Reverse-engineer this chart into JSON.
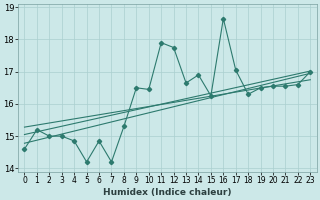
{
  "xlabel": "Humidex (Indice chaleur)",
  "x_data": [
    0,
    1,
    2,
    3,
    4,
    5,
    6,
    7,
    8,
    9,
    10,
    11,
    12,
    13,
    14,
    15,
    16,
    17,
    18,
    19,
    20,
    21,
    22,
    23
  ],
  "y_data": [
    14.6,
    15.2,
    15.0,
    15.0,
    14.85,
    14.2,
    14.85,
    14.2,
    15.3,
    16.5,
    16.45,
    17.9,
    17.75,
    16.65,
    16.9,
    16.25,
    18.65,
    17.05,
    16.3,
    16.5,
    16.55,
    16.55,
    16.6,
    17.0
  ],
  "line_color": "#2d7a6e",
  "bg_color": "#cce8e8",
  "grid_color": "#aacfcf",
  "xlim": [
    -0.5,
    23.5
  ],
  "ylim": [
    13.9,
    19.1
  ],
  "yticks": [
    14,
    15,
    16,
    17,
    18,
    19
  ],
  "xticks": [
    0,
    1,
    2,
    3,
    4,
    5,
    6,
    7,
    8,
    9,
    10,
    11,
    12,
    13,
    14,
    15,
    16,
    17,
    18,
    19,
    20,
    21,
    22,
    23
  ],
  "reg_lines": [
    {
      "x0": 0,
      "y0": 14.78,
      "x1": 23,
      "y1": 16.95
    },
    {
      "x0": 0,
      "y0": 15.05,
      "x1": 23,
      "y1": 17.02
    },
    {
      "x0": 0,
      "y0": 15.28,
      "x1": 23,
      "y1": 16.75
    }
  ],
  "tick_fontsize": 5.5,
  "xlabel_fontsize": 6.5
}
